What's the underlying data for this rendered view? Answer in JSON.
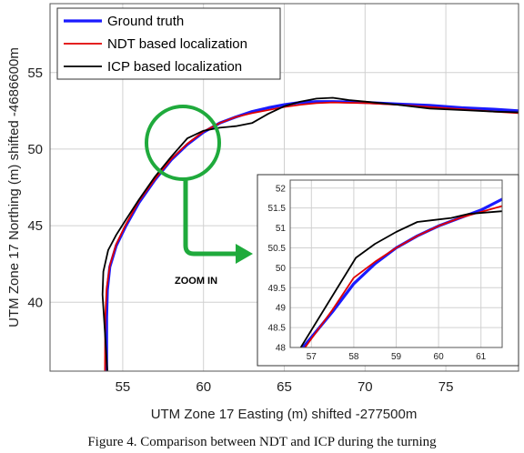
{
  "caption": "Figure 4. Comparison between NDT and ICP during the turning",
  "colors": {
    "ground_truth": "#1a1aff",
    "ndt": "#e00000",
    "icp": "#000000",
    "annotation": "#1faa3c",
    "grid": "#d0d0d0"
  },
  "zoom_label": "ZOOM IN",
  "chart_data": [
    {
      "id": "main",
      "type": "line",
      "xlabel": "UTM Zone 17 Easting (m) shifted -277500m",
      "ylabel": "UTM Zone 17 Northing (m) shifted -4686600m",
      "xlim": [
        50.5,
        79.5
      ],
      "ylim": [
        35.5,
        59.5
      ],
      "xticks": [
        55,
        60,
        65,
        70,
        75
      ],
      "yticks": [
        40,
        45,
        50,
        55
      ],
      "grid": true,
      "legend_position": "top-left",
      "series": [
        {
          "name": "Ground truth",
          "color": "#1a1aff",
          "width": 3.2,
          "x": [
            54.0,
            54.0,
            54.05,
            54.2,
            54.6,
            55.2,
            56.0,
            57.0,
            58.0,
            59.0,
            60.0,
            61.0,
            62.0,
            63.0,
            64.0,
            65.0,
            66.0,
            67.0,
            68.0,
            70.0,
            72.0,
            74.0,
            76.0,
            78.0,
            79.5
          ],
          "y": [
            35.5,
            39.0,
            40.8,
            42.3,
            43.7,
            45.0,
            46.5,
            48.0,
            49.3,
            50.3,
            51.1,
            51.7,
            52.1,
            52.45,
            52.7,
            52.9,
            53.05,
            53.1,
            53.1,
            53.05,
            52.95,
            52.85,
            52.7,
            52.6,
            52.5
          ]
        },
        {
          "name": "NDT based localization",
          "color": "#e00000",
          "width": 1.8,
          "x": [
            53.9,
            53.92,
            54.0,
            54.2,
            54.6,
            55.2,
            56.0,
            57.0,
            58.0,
            59.0,
            60.0,
            61.0,
            62.0,
            63.0,
            64.0,
            65.0,
            66.0,
            67.0,
            68.0,
            70.0,
            72.0,
            74.0,
            76.0,
            78.0,
            79.5
          ],
          "y": [
            35.5,
            39.0,
            40.9,
            42.4,
            43.8,
            45.1,
            46.6,
            48.05,
            49.35,
            50.35,
            51.15,
            51.7,
            52.1,
            52.35,
            52.55,
            52.75,
            52.9,
            53.0,
            53.05,
            53.0,
            52.9,
            52.75,
            52.6,
            52.45,
            52.35
          ]
        },
        {
          "name": "ICP based localization",
          "color": "#000000",
          "width": 1.8,
          "x": [
            54.05,
            53.9,
            53.75,
            53.8,
            54.1,
            54.6,
            55.2,
            56.0,
            57.0,
            58.0,
            59.0,
            60.0,
            61.0,
            62.0,
            63.0,
            64.0,
            65.0,
            66.0,
            67.0,
            68.0,
            69.0,
            70.0,
            72.0,
            74.0,
            76.0,
            78.0,
            79.5
          ],
          "y": [
            35.5,
            38.0,
            40.5,
            42.0,
            43.4,
            44.4,
            45.4,
            46.7,
            48.2,
            49.5,
            50.7,
            51.2,
            51.4,
            51.5,
            51.7,
            52.3,
            52.8,
            53.1,
            53.3,
            53.35,
            53.2,
            53.1,
            52.9,
            52.65,
            52.55,
            52.45,
            52.4
          ]
        }
      ]
    },
    {
      "id": "inset",
      "type": "line",
      "xlim": [
        56.5,
        61.5
      ],
      "ylim": [
        48.0,
        52.2
      ],
      "xticks": [
        57,
        58,
        59,
        60,
        61
      ],
      "yticks": [
        48,
        48.5,
        49,
        49.5,
        50,
        50.5,
        51,
        51.5,
        52
      ],
      "grid": true,
      "series": [
        {
          "name": "Ground truth",
          "color": "#1a1aff",
          "width": 3.2,
          "x": [
            56.8,
            57.5,
            58.0,
            58.5,
            59.0,
            59.5,
            60.0,
            60.5,
            61.0,
            61.5
          ],
          "y": [
            48.0,
            48.9,
            49.6,
            50.1,
            50.5,
            50.8,
            51.05,
            51.25,
            51.45,
            51.72
          ]
        },
        {
          "name": "NDT based localization",
          "color": "#e00000",
          "width": 1.8,
          "x": [
            56.85,
            57.5,
            58.0,
            58.5,
            59.0,
            59.5,
            60.0,
            60.5,
            61.0,
            61.5
          ],
          "y": [
            48.0,
            48.95,
            49.75,
            50.15,
            50.5,
            50.8,
            51.05,
            51.25,
            51.4,
            51.55
          ]
        },
        {
          "name": "ICP based localization",
          "color": "#000000",
          "width": 1.8,
          "x": [
            56.75,
            57.5,
            58.05,
            58.5,
            59.0,
            59.5,
            59.9,
            60.3,
            60.7,
            61.5
          ],
          "y": [
            48.0,
            49.3,
            50.25,
            50.6,
            50.9,
            51.15,
            51.2,
            51.25,
            51.35,
            51.42
          ]
        }
      ]
    }
  ]
}
